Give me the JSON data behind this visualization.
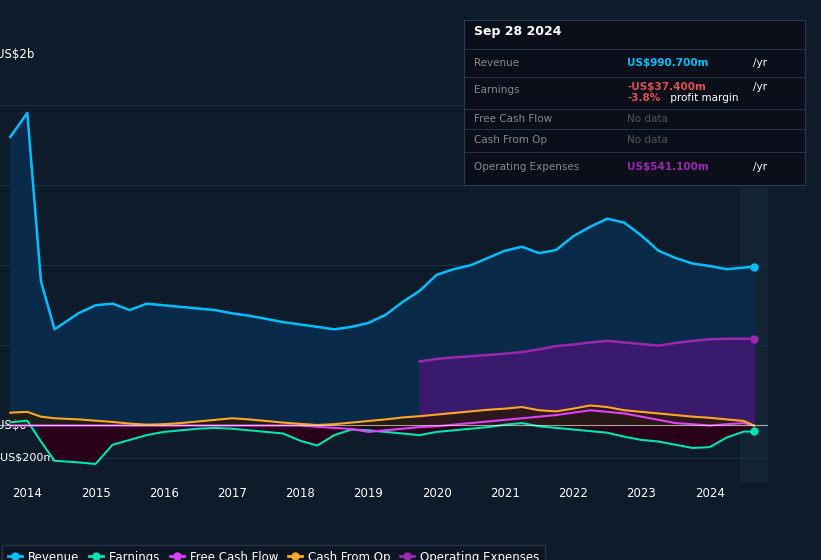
{
  "bg_color": "#0d1b2a",
  "plot_bg_color": "#0d1b2a",
  "grid_color": "#1e3a5f",
  "revenue_color": "#00bfff",
  "earnings_color": "#00e5b0",
  "free_cash_flow_color": "#e040fb",
  "cash_from_op_color": "#ffa726",
  "operating_expenses_color": "#9c27b0",
  "operating_expenses_fill": "#3d1a6e",
  "revenue_fill": "#0a2a4a",
  "earnings_neg_fill": "#2a0015",
  "earnings_pos_fill": "#002a15",
  "ylabel_2b": "US$2b",
  "ylabel_0": "US$0",
  "ylabel_neg200m": "-US$200m",
  "tooltip_date": "Sep 28 2024",
  "tooltip_revenue_label": "Revenue",
  "tooltip_revenue_value": "US$990.700m",
  "tooltip_earnings_label": "Earnings",
  "tooltip_earnings_value": "-US$37.400m",
  "tooltip_margin": "-3.8% profit margin",
  "tooltip_fcf_label": "Free Cash Flow",
  "tooltip_fcf_value": "No data",
  "tooltip_cashop_label": "Cash From Op",
  "tooltip_cashop_value": "No data",
  "tooltip_opex_label": "Operating Expenses",
  "tooltip_opex_value": "US$541.100m",
  "xlim_min": 2013.6,
  "xlim_max": 2024.85,
  "ylim_min": -350,
  "ylim_max": 2200,
  "ytick_2b": 2000,
  "ytick_0": 0,
  "ytick_neg200": -200,
  "opex_start_year": 2019.75,
  "years": [
    2013.75,
    2014.0,
    2014.2,
    2014.4,
    2014.75,
    2015.0,
    2015.25,
    2015.5,
    2015.75,
    2016.0,
    2016.25,
    2016.5,
    2016.75,
    2017.0,
    2017.25,
    2017.5,
    2017.75,
    2018.0,
    2018.25,
    2018.5,
    2018.75,
    2019.0,
    2019.25,
    2019.5,
    2019.75,
    2020.0,
    2020.25,
    2020.5,
    2020.75,
    2021.0,
    2021.25,
    2021.5,
    2021.75,
    2022.0,
    2022.25,
    2022.5,
    2022.75,
    2023.0,
    2023.25,
    2023.5,
    2023.75,
    2024.0,
    2024.25,
    2024.5,
    2024.65
  ],
  "revenue": [
    1800,
    1950,
    900,
    600,
    700,
    750,
    760,
    720,
    760,
    750,
    740,
    730,
    720,
    700,
    685,
    665,
    645,
    630,
    615,
    600,
    615,
    640,
    690,
    770,
    840,
    940,
    975,
    1000,
    1045,
    1090,
    1115,
    1075,
    1095,
    1180,
    1240,
    1290,
    1265,
    1185,
    1090,
    1045,
    1010,
    995,
    975,
    985,
    991
  ],
  "earnings": [
    20,
    30,
    -100,
    -220,
    -230,
    -240,
    -120,
    -90,
    -60,
    -40,
    -30,
    -20,
    -15,
    -20,
    -30,
    -40,
    -50,
    -95,
    -125,
    -60,
    -25,
    -30,
    -40,
    -50,
    -60,
    -40,
    -30,
    -20,
    -10,
    5,
    15,
    -5,
    -15,
    -25,
    -35,
    -45,
    -70,
    -90,
    -100,
    -120,
    -140,
    -135,
    -75,
    -38,
    -37.4
  ],
  "free_cash_flow": [
    0,
    0,
    0,
    0,
    0,
    0,
    0,
    0,
    0,
    0,
    0,
    0,
    0,
    0,
    0,
    0,
    0,
    0,
    -8,
    -15,
    -22,
    -40,
    -30,
    -20,
    -10,
    -5,
    5,
    15,
    25,
    35,
    45,
    55,
    65,
    80,
    95,
    85,
    75,
    55,
    35,
    15,
    8,
    0,
    8,
    15,
    0
  ],
  "cash_from_op": [
    80,
    85,
    55,
    45,
    38,
    30,
    22,
    12,
    5,
    8,
    15,
    25,
    35,
    45,
    38,
    28,
    18,
    10,
    3,
    8,
    18,
    28,
    38,
    50,
    58,
    68,
    78,
    88,
    98,
    105,
    115,
    95,
    88,
    105,
    125,
    115,
    95,
    85,
    75,
    65,
    55,
    48,
    38,
    28,
    0
  ],
  "operating_expenses": [
    0,
    0,
    0,
    0,
    0,
    0,
    0,
    0,
    0,
    0,
    0,
    0,
    0,
    0,
    0,
    0,
    0,
    0,
    0,
    0,
    0,
    0,
    0,
    0,
    400,
    415,
    425,
    432,
    440,
    448,
    458,
    475,
    495,
    505,
    518,
    528,
    518,
    508,
    498,
    515,
    528,
    538,
    541,
    541,
    541
  ],
  "xticks": [
    2014,
    2015,
    2016,
    2017,
    2018,
    2019,
    2020,
    2021,
    2022,
    2023,
    2024
  ],
  "xtick_labels": [
    "2014",
    "2015",
    "2016",
    "2017",
    "2018",
    "2019",
    "2020",
    "2021",
    "2022",
    "2023",
    "2024"
  ],
  "legend_labels": [
    "Revenue",
    "Earnings",
    "Free Cash Flow",
    "Cash From Op",
    "Operating Expenses"
  ],
  "right_shade_start": 2024.45
}
